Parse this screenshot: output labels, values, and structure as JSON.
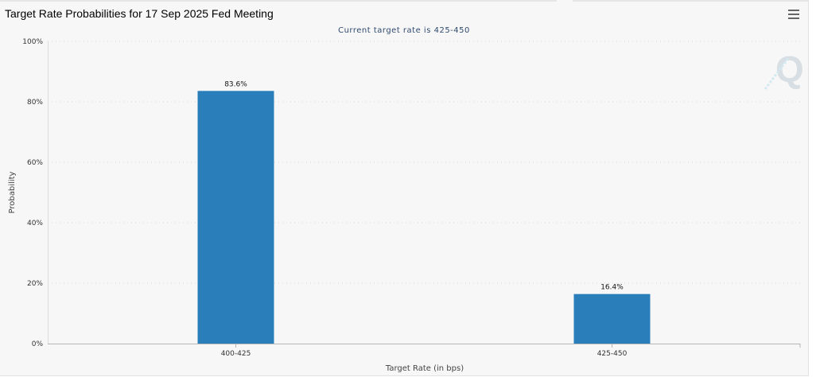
{
  "chart_data": {
    "type": "bar",
    "title": "Target Rate Probabilities for 17 Sep 2025 Fed Meeting",
    "subtitle": "Current target rate is 425-450",
    "xlabel": "Target Rate (in bps)",
    "ylabel": "Probability",
    "categories": [
      "400-425",
      "425-450"
    ],
    "values": [
      83.6,
      16.4
    ],
    "data_labels": [
      "83.6%",
      "16.4%"
    ],
    "y_ticks": [
      "0%",
      "20%",
      "40%",
      "60%",
      "80%",
      "100%"
    ],
    "ylim": [
      0,
      100
    ],
    "grid": true,
    "legend": "none"
  },
  "colors": {
    "bar": "#2a7fba",
    "grid": "#d8d8d8",
    "axis_text": "#333333",
    "subtitle": "#2f4a6e"
  },
  "icons": {
    "menu": "hamburger-menu-icon",
    "watermark": "quikstrike-q-logo"
  }
}
